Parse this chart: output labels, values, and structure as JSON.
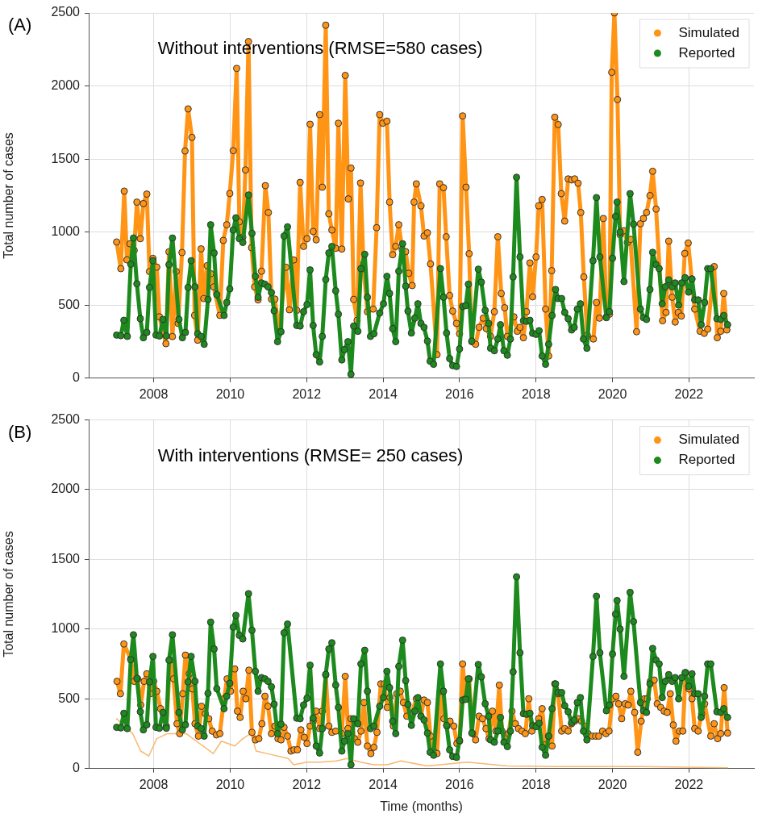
{
  "chart_data": [
    {
      "type": "line",
      "title": "Without interventions (RMSE=580 cases)",
      "ylabel": "Total number of cases",
      "annotations": [
        "(A)"
      ],
      "xlim": [
        2006.3,
        2023.7
      ],
      "xticks": [
        2008,
        2010,
        2012,
        2014,
        2016,
        2018,
        2020,
        2022
      ],
      "ylim": [
        0,
        2500
      ],
      "yticks": [
        0,
        500,
        1000,
        1500,
        2000,
        2500
      ],
      "grid": true,
      "legend": "top right",
      "marker": "circle",
      "series": [
        {
          "name": "Simulated",
          "color": "#ff9415",
          "x": [
            2007.03,
            2007.14,
            2007.23,
            2007.3,
            2007.38,
            2007.49,
            2007.56,
            2007.65,
            2007.73,
            2007.82,
            2007.89,
            2007.98,
            2008.08,
            2008.15,
            2008.32,
            2008.4,
            2008.49,
            2008.59,
            2008.64,
            2008.74,
            2008.82,
            2008.9,
            2009.0,
            2009.07,
            2009.15,
            2009.24,
            2009.31,
            2009.4,
            2009.49,
            2009.57,
            2009.73,
            2009.82,
            2009.91,
            2009.99,
            2010.08,
            2010.17,
            2010.24,
            2010.33,
            2010.4,
            2010.48,
            2010.56,
            2010.64,
            2010.73,
            2010.82,
            2010.92,
            2011.0,
            2011.08,
            2011.17,
            2011.28,
            2011.46,
            2011.55,
            2011.66,
            2011.74,
            2011.83,
            2011.92,
            2012.01,
            2012.09,
            2012.17,
            2012.25,
            2012.34,
            2012.41,
            2012.5,
            2012.58,
            2012.66,
            2012.76,
            2012.83,
            2012.92,
            2013.01,
            2013.09,
            2013.16,
            2013.23,
            2013.32,
            2013.41,
            2013.49,
            2013.59,
            2013.74,
            2013.83,
            2013.91,
            2013.99,
            2014.1,
            2014.17,
            2014.25,
            2014.33,
            2014.41,
            2014.5,
            2014.59,
            2014.67,
            2014.76,
            2014.81,
            2014.87,
            2014.99,
            2015.07,
            2015.16,
            2015.24,
            2015.41,
            2015.48,
            2015.58,
            2015.65,
            2015.74,
            2015.82,
            2015.92,
            2016.0,
            2016.08,
            2016.17,
            2016.25,
            2016.32,
            2016.42,
            2016.51,
            2016.62,
            2016.7,
            2016.81,
            2016.91,
            2017.0,
            2017.09,
            2017.18,
            2017.25,
            2017.42,
            2017.51,
            2017.58,
            2017.67,
            2017.75,
            2017.84,
            2017.91,
            2018.0,
            2018.07,
            2018.16,
            2018.25,
            2018.33,
            2018.41,
            2018.49,
            2018.58,
            2018.66,
            2018.75,
            2018.84,
            2018.93,
            2019.01,
            2019.1,
            2019.17,
            2019.25,
            2019.34,
            2019.5,
            2019.58,
            2019.66,
            2019.76,
            2019.84,
            2019.92,
            2019.98,
            2020.05,
            2020.13,
            2020.2,
            2020.3,
            2020.39,
            2020.47,
            2020.63,
            2020.73,
            2020.81,
            2020.89,
            2020.98,
            2021.05,
            2021.14,
            2021.31,
            2021.4,
            2021.47,
            2021.56,
            2021.64,
            2021.72,
            2021.8,
            2021.89,
            2021.98,
            2022.07,
            2022.15,
            2022.29,
            2022.4,
            2022.49,
            2022.66,
            2022.74,
            2022.83,
            2022.91,
            2022.99
          ],
          "values": [
            932,
            750,
            1280,
            810,
            920,
            875,
            1205,
            955,
            1195,
            1260,
            730,
            820,
            760,
            420,
            236,
            865,
            285,
            730,
            375,
            860,
            1555,
            1843,
            1648,
            430,
            260,
            885,
            545,
            770,
            715,
            625,
            430,
            943,
            1050,
            1264,
            1557,
            2120,
            1070,
            965,
            1425,
            2304,
            893,
            625,
            536,
            732,
            1318,
            1134,
            541,
            541,
            318,
            759,
            468,
            809,
            464,
            1340,
            902,
            955,
            1738,
            1004,
            947,
            1804,
            1307,
            2416,
            1125,
            1014,
            889,
            1745,
            884,
            2072,
            1227,
            1438,
            539,
            396,
            1336,
            750,
            455,
            473,
            1030,
            1804,
            1745,
            1759,
            1205,
            845,
            902,
            1050,
            879,
            866,
            718,
            634,
            1205,
            1330,
            1179,
            973,
            995,
            782,
            161,
            1330,
            1304,
            968,
            566,
            459,
            375,
            304,
            1795,
            1307,
            852,
            250,
            232,
            348,
            411,
            339,
            286,
            455,
            968,
            580,
            482,
            286,
            420,
            321,
            348,
            277,
            455,
            789,
            557,
            830,
            1179,
            1223,
            473,
            152,
            736,
            1786,
            1736,
            1263,
            1075,
            1364,
            1357,
            1364,
            1334,
            1134,
            693,
            295,
            268,
            518,
            411,
            1093,
            420,
            438,
            2093,
            2500,
            1907,
            982,
            1009,
            929,
            950,
            318,
            1057,
            1093,
            1134,
            1250,
            1416,
            1157,
            393,
            450,
            938,
            554,
            384,
            450,
            425,
            854,
            925,
            679,
            473,
            321,
            307,
            336,
            764,
            277,
            321,
            580,
            330
          ]
        },
        {
          "name": "Reported",
          "color": "#1c8a1c",
          "x": [
            2007.03,
            2007.14,
            2007.22,
            2007.31,
            2007.4,
            2007.47,
            2007.56,
            2007.65,
            2007.73,
            2007.82,
            2007.89,
            2007.98,
            2008.06,
            2008.15,
            2008.24,
            2008.33,
            2008.4,
            2008.49,
            2008.66,
            2008.75,
            2008.83,
            2008.9,
            2008.98,
            2009.08,
            2009.15,
            2009.24,
            2009.32,
            2009.42,
            2009.49,
            2009.58,
            2009.65,
            2009.84,
            2009.91,
            2009.99,
            2010.08,
            2010.15,
            2010.24,
            2010.33,
            2010.48,
            2010.57,
            2010.66,
            2010.73,
            2010.82,
            2010.91,
            2010.99,
            2011.08,
            2011.15,
            2011.24,
            2011.33,
            2011.41,
            2011.5,
            2011.74,
            2011.83,
            2011.92,
            2012.01,
            2012.09,
            2012.17,
            2012.25,
            2012.34,
            2012.41,
            2012.5,
            2012.58,
            2012.66,
            2012.76,
            2012.83,
            2012.92,
            2012.99,
            2013.08,
            2013.16,
            2013.23,
            2013.34,
            2013.42,
            2013.52,
            2013.59,
            2013.67,
            2013.76,
            2013.91,
            2014.01,
            2014.1,
            2014.17,
            2014.25,
            2014.33,
            2014.41,
            2014.51,
            2014.59,
            2014.65,
            2014.74,
            2014.83,
            2014.91,
            2014.99,
            2015.07,
            2015.16,
            2015.23,
            2015.32,
            2015.5,
            2015.58,
            2015.66,
            2015.74,
            2015.82,
            2015.92,
            2016.0,
            2016.08,
            2016.16,
            2016.23,
            2016.32,
            2016.49,
            2016.57,
            2016.67,
            2016.76,
            2016.81,
            2016.91,
            2017.0,
            2017.07,
            2017.16,
            2017.25,
            2017.33,
            2017.4,
            2017.49,
            2017.58,
            2017.67,
            2017.75,
            2017.84,
            2017.91,
            2018.0,
            2018.08,
            2018.16,
            2018.25,
            2018.33,
            2018.42,
            2018.51,
            2018.58,
            2018.67,
            2018.75,
            2018.84,
            2018.93,
            2019.0,
            2019.08,
            2019.16,
            2019.24,
            2019.33,
            2019.49,
            2019.58,
            2019.67,
            2019.84,
            2019.92,
            2020.0,
            2020.08,
            2020.12,
            2020.2,
            2020.3,
            2020.46,
            2020.55,
            2020.73,
            2020.81,
            2020.89,
            2020.98,
            2021.05,
            2021.14,
            2021.22,
            2021.3,
            2021.38,
            2021.47,
            2021.56,
            2021.64,
            2021.73,
            2021.81,
            2021.9,
            2021.99,
            2022.08,
            2022.15,
            2022.24,
            2022.32,
            2022.41,
            2022.49,
            2022.57,
            2022.73,
            2022.83,
            2022.91,
            2023.01
          ],
          "values": [
            295,
            291,
            396,
            286,
            780,
            959,
            646,
            407,
            277,
            313,
            621,
            804,
            295,
            289,
            402,
            289,
            777,
            959,
            402,
            277,
            313,
            621,
            804,
            625,
            304,
            286,
            232,
            539,
            1050,
            857,
            572,
            429,
            518,
            611,
            1014,
            1098,
            955,
            929,
            1254,
            991,
            697,
            554,
            652,
            643,
            625,
            586,
            461,
            250,
            318,
            973,
            1036,
            361,
            357,
            455,
            504,
            741,
            361,
            161,
            111,
            286,
            675,
            857,
            902,
            598,
            438,
            125,
            196,
            250,
            27,
            357,
            321,
            750,
            848,
            554,
            286,
            304,
            446,
            509,
            697,
            580,
            339,
            250,
            732,
            920,
            630,
            459,
            309,
            411,
            509,
            375,
            348,
            254,
            116,
            95,
            750,
            554,
            309,
            134,
            86,
            80,
            200,
            491,
            496,
            643,
            254,
            746,
            657,
            464,
            375,
            205,
            188,
            268,
            366,
            188,
            157,
            268,
            693,
            1375,
            830,
            393,
            389,
            396,
            307,
            300,
            325,
            152,
            95,
            232,
            429,
            607,
            545,
            545,
            450,
            407,
            330,
            348,
            473,
            509,
            268,
            205,
            804,
            1236,
            830,
            414,
            455,
            821,
            1107,
            1205,
            1000,
            661,
            1263,
            1054,
            473,
            414,
            402,
            607,
            861,
            777,
            750,
            509,
            625,
            673,
            625,
            652,
            500,
            652,
            688,
            589,
            679,
            536,
            536,
            366,
            518,
            750,
            750,
            407,
            402,
            429,
            366
          ]
        }
      ]
    },
    {
      "type": "line",
      "title": "With interventions (RMSE= 250 cases)",
      "xlabel": "Time (months)",
      "ylabel": "Total number of cases",
      "annotations": [
        "(B)"
      ],
      "xlim": [
        2006.3,
        2023.7
      ],
      "xticks": [
        2008,
        2010,
        2012,
        2014,
        2016,
        2018,
        2020,
        2022
      ],
      "ylim": [
        0,
        2500
      ],
      "yticks": [
        0,
        500,
        1000,
        1500,
        2000,
        2500
      ],
      "grid": true,
      "legend": "top right",
      "marker": "circle",
      "series": [
        {
          "color": "#f7b870",
          "marker": "none",
          "x": [
            2007.03,
            2007.45,
            2007.66,
            2007.87,
            2008.08,
            2008.36,
            2008.85,
            2009.56,
            2009.77,
            2010.12,
            2010.33,
            2010.54,
            2010.68,
            2010.96,
            2011.52,
            2011.66,
            2012.01,
            2012.36,
            2012.78,
            2013.06,
            2013.41,
            2013.76,
            2014.11,
            2014.46,
            2015.15,
            2016.2,
            2017.25,
            2018.65,
            2020.75,
            2023.01
          ],
          "values": [
            357,
            250,
            125,
            89,
            214,
            250,
            250,
            107,
            196,
            161,
            214,
            250,
            125,
            107,
            71,
            27,
            45,
            45,
            54,
            71,
            45,
            27,
            27,
            54,
            18,
            45,
            18,
            14,
            13,
            5
          ]
        },
        {
          "name": "Simulated",
          "color": "#ff9415",
          "x": [
            2007.04,
            2007.13,
            2007.22,
            2007.4,
            2007.49,
            2007.58,
            2007.66,
            2007.75,
            2007.82,
            2007.91,
            2008.0,
            2008.08,
            2008.18,
            2008.26,
            2008.33,
            2008.43,
            2008.52,
            2008.61,
            2008.68,
            2008.76,
            2008.83,
            2008.93,
            2009.01,
            2009.08,
            2009.17,
            2009.25,
            2009.35,
            2009.44,
            2009.53,
            2009.64,
            2009.73,
            2009.84,
            2009.92,
            2010.01,
            2010.12,
            2010.19,
            2010.26,
            2010.34,
            2010.41,
            2010.49,
            2010.57,
            2010.66,
            2010.75,
            2010.83,
            2010.91,
            2010.99,
            2011.08,
            2011.17,
            2011.25,
            2011.33,
            2011.41,
            2011.5,
            2011.59,
            2011.67,
            2011.76,
            2011.85,
            2011.94,
            2012.01,
            2012.09,
            2012.17,
            2012.25,
            2012.34,
            2012.41,
            2012.5,
            2012.58,
            2012.66,
            2012.76,
            2012.92,
            2013.01,
            2013.08,
            2013.16,
            2013.25,
            2013.34,
            2013.42,
            2013.5,
            2013.59,
            2013.68,
            2013.76,
            2013.84,
            2013.94,
            2014.03,
            2014.11,
            2014.18,
            2014.27,
            2014.36,
            2014.45,
            2014.53,
            2014.62,
            2014.74,
            2014.87,
            2014.99,
            2015.07,
            2015.16,
            2015.24,
            2015.32,
            2015.41,
            2015.5,
            2015.59,
            2015.67,
            2015.75,
            2015.85,
            2015.93,
            2016.0,
            2016.08,
            2016.16,
            2016.25,
            2016.34,
            2016.42,
            2016.51,
            2016.6,
            2016.69,
            2016.77,
            2016.86,
            2016.95,
            2017.04,
            2017.11,
            2017.2,
            2017.28,
            2017.37,
            2017.46,
            2017.54,
            2017.63,
            2017.72,
            2017.81,
            2017.89,
            2017.98,
            2018.07,
            2018.16,
            2018.25,
            2018.33,
            2018.42,
            2018.49,
            2018.58,
            2018.67,
            2018.75,
            2018.84,
            2018.93,
            2019.01,
            2019.1,
            2019.19,
            2019.28,
            2019.36,
            2019.47,
            2019.56,
            2019.64,
            2019.74,
            2019.83,
            2019.91,
            2020.0,
            2020.09,
            2020.16,
            2020.24,
            2020.33,
            2020.41,
            2020.48,
            2020.58,
            2020.66,
            2020.75,
            2020.84,
            2020.91,
            2020.99,
            2021.09,
            2021.17,
            2021.26,
            2021.35,
            2021.43,
            2021.51,
            2021.59,
            2021.66,
            2021.75,
            2021.84,
            2021.91,
            2022.0,
            2022.08,
            2022.15,
            2022.24,
            2022.33,
            2022.41,
            2022.57,
            2022.66,
            2022.75,
            2022.83,
            2022.92,
            2023.01
          ],
          "values": [
            625,
            536,
            893,
            786,
            625,
            643,
            455,
            625,
            679,
            536,
            625,
            554,
            429,
            357,
            304,
            777,
            643,
            321,
            250,
            536,
            813,
            679,
            571,
            321,
            232,
            446,
            393,
            357,
            268,
            241,
            250,
            500,
            643,
            554,
            714,
            411,
            366,
            554,
            500,
            705,
            259,
            205,
            214,
            321,
            518,
            446,
            250,
            304,
            214,
            205,
            295,
            232,
            125,
            134,
            134,
            277,
            223,
            179,
            304,
            339,
            411,
            286,
            411,
            670,
            304,
            259,
            268,
            250,
            661,
            286,
            357,
            214,
            188,
            268,
            473,
            161,
            107,
            152,
            259,
            607,
            607,
            438,
            509,
            304,
            536,
            554,
            473,
            375,
            393,
            500,
            375,
            491,
            473,
            232,
            125,
            107,
            554,
            357,
            304,
            339,
            304,
            179,
            196,
            750,
            500,
            643,
            250,
            205,
            375,
            357,
            286,
            214,
            411,
            268,
            598,
            268,
            232,
            250,
            411,
            321,
            286,
            268,
            250,
            500,
            268,
            304,
            357,
            429,
            170,
            232,
            161,
            607,
            536,
            268,
            286,
            268,
            321,
            339,
            357,
            339,
            304,
            250,
            232,
            232,
            232,
            268,
            250,
            268,
            500,
            518,
            464,
            357,
            464,
            455,
            554,
            402,
            116,
            339,
            500,
            500,
            625,
            634,
            464,
            438,
            411,
            402,
            536,
            312,
            196,
            268,
            268,
            688,
            571,
            500,
            286,
            268,
            393,
            464,
            232,
            321,
            214,
            250,
            580,
            254
          ]
        },
        {
          "name": "Reported",
          "color": "#1c8a1c",
          "x": [
            2007.03,
            2007.14,
            2007.22,
            2007.31,
            2007.4,
            2007.47,
            2007.56,
            2007.65,
            2007.73,
            2007.82,
            2007.89,
            2007.98,
            2008.06,
            2008.15,
            2008.24,
            2008.33,
            2008.4,
            2008.49,
            2008.66,
            2008.75,
            2008.83,
            2008.9,
            2008.98,
            2009.08,
            2009.15,
            2009.24,
            2009.32,
            2009.42,
            2009.49,
            2009.58,
            2009.65,
            2009.84,
            2009.91,
            2009.99,
            2010.08,
            2010.15,
            2010.24,
            2010.33,
            2010.48,
            2010.57,
            2010.66,
            2010.73,
            2010.82,
            2010.91,
            2010.99,
            2011.08,
            2011.15,
            2011.24,
            2011.33,
            2011.41,
            2011.5,
            2011.74,
            2011.83,
            2011.92,
            2012.01,
            2012.09,
            2012.17,
            2012.25,
            2012.34,
            2012.41,
            2012.5,
            2012.58,
            2012.66,
            2012.76,
            2012.83,
            2012.92,
            2012.99,
            2013.08,
            2013.16,
            2013.23,
            2013.34,
            2013.42,
            2013.52,
            2013.59,
            2013.67,
            2013.76,
            2013.91,
            2014.01,
            2014.1,
            2014.17,
            2014.25,
            2014.33,
            2014.41,
            2014.51,
            2014.59,
            2014.65,
            2014.74,
            2014.83,
            2014.91,
            2014.99,
            2015.07,
            2015.16,
            2015.23,
            2015.32,
            2015.5,
            2015.58,
            2015.66,
            2015.74,
            2015.82,
            2015.92,
            2016.0,
            2016.08,
            2016.16,
            2016.23,
            2016.32,
            2016.49,
            2016.57,
            2016.67,
            2016.76,
            2016.81,
            2016.91,
            2017.0,
            2017.07,
            2017.16,
            2017.25,
            2017.33,
            2017.4,
            2017.49,
            2017.58,
            2017.67,
            2017.75,
            2017.84,
            2017.91,
            2018.0,
            2018.08,
            2018.16,
            2018.25,
            2018.33,
            2018.42,
            2018.51,
            2018.58,
            2018.67,
            2018.75,
            2018.84,
            2018.93,
            2019.0,
            2019.08,
            2019.16,
            2019.24,
            2019.33,
            2019.49,
            2019.58,
            2019.67,
            2019.84,
            2019.92,
            2020.0,
            2020.08,
            2020.12,
            2020.2,
            2020.3,
            2020.46,
            2020.55,
            2020.73,
            2020.81,
            2020.89,
            2020.98,
            2021.05,
            2021.14,
            2021.22,
            2021.3,
            2021.38,
            2021.47,
            2021.56,
            2021.64,
            2021.73,
            2021.81,
            2021.9,
            2021.99,
            2022.08,
            2022.15,
            2022.24,
            2022.32,
            2022.41,
            2022.49,
            2022.57,
            2022.73,
            2022.83,
            2022.91,
            2023.01
          ],
          "values": [
            295,
            291,
            396,
            286,
            780,
            959,
            646,
            407,
            277,
            313,
            621,
            804,
            295,
            289,
            402,
            289,
            777,
            959,
            402,
            277,
            313,
            621,
            804,
            625,
            304,
            286,
            232,
            539,
            1050,
            857,
            572,
            429,
            518,
            611,
            1014,
            1098,
            955,
            929,
            1254,
            991,
            697,
            554,
            652,
            643,
            625,
            586,
            461,
            250,
            318,
            973,
            1036,
            361,
            357,
            455,
            504,
            741,
            361,
            161,
            111,
            286,
            675,
            857,
            902,
            598,
            438,
            125,
            196,
            250,
            27,
            357,
            321,
            750,
            848,
            554,
            286,
            304,
            446,
            509,
            697,
            580,
            339,
            250,
            732,
            920,
            630,
            459,
            309,
            411,
            509,
            375,
            348,
            254,
            116,
            95,
            750,
            554,
            309,
            134,
            86,
            80,
            200,
            491,
            496,
            643,
            254,
            746,
            657,
            464,
            375,
            205,
            188,
            268,
            366,
            188,
            157,
            268,
            693,
            1375,
            830,
            393,
            389,
            396,
            307,
            300,
            325,
            152,
            95,
            232,
            429,
            607,
            545,
            545,
            450,
            407,
            330,
            348,
            473,
            509,
            268,
            205,
            804,
            1236,
            830,
            414,
            455,
            821,
            1107,
            1205,
            1000,
            661,
            1263,
            1054,
            473,
            414,
            402,
            607,
            861,
            777,
            750,
            509,
            625,
            673,
            625,
            652,
            500,
            652,
            688,
            589,
            679,
            536,
            536,
            366,
            518,
            750,
            750,
            407,
            402,
            429,
            366
          ]
        }
      ]
    }
  ]
}
